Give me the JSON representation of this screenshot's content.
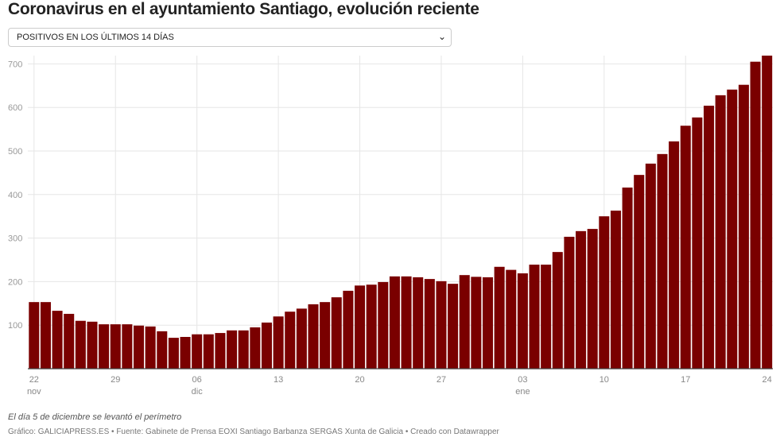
{
  "title": "Coronavirus en el ayuntamiento Santiago, evolución reciente",
  "selector": {
    "value": "POSITIVOS EN LOS ÚLTIMOS 14 DÍAS"
  },
  "note": "El día 5 de diciembre se levantó el perímetro",
  "source": "Gráfico: GALICIAPRESS.ES • Fuente: Gabinete de Prensa EOXI Santiago Barbanza SERGAS Xunta de Galicia • Creado con Datawrapper",
  "colors": {
    "bar": "#7a0000"
  },
  "chart_data": {
    "type": "bar",
    "title": "Coronavirus en el ayuntamiento Santiago, evolución reciente",
    "xlabel": "",
    "ylabel": "",
    "ylim": [
      0,
      720
    ],
    "yticks": [
      100,
      200,
      300,
      400,
      500,
      600,
      700
    ],
    "grid": true,
    "xticks": [
      {
        "index": 0,
        "label": "22",
        "sub": "nov"
      },
      {
        "index": 7,
        "label": "29",
        "sub": ""
      },
      {
        "index": 14,
        "label": "06",
        "sub": "dic"
      },
      {
        "index": 21,
        "label": "13",
        "sub": ""
      },
      {
        "index": 28,
        "label": "20",
        "sub": ""
      },
      {
        "index": 35,
        "label": "27",
        "sub": ""
      },
      {
        "index": 42,
        "label": "03",
        "sub": "ene"
      },
      {
        "index": 49,
        "label": "10",
        "sub": ""
      },
      {
        "index": 56,
        "label": "17",
        "sub": ""
      },
      {
        "index": 63,
        "label": "24",
        "sub": ""
      }
    ],
    "categories": [
      "22 nov",
      "23 nov",
      "24 nov",
      "25 nov",
      "26 nov",
      "27 nov",
      "28 nov",
      "29 nov",
      "30 nov",
      "1 dic",
      "2 dic",
      "3 dic",
      "4 dic",
      "5 dic",
      "6 dic",
      "7 dic",
      "8 dic",
      "9 dic",
      "10 dic",
      "11 dic",
      "12 dic",
      "13 dic",
      "14 dic",
      "15 dic",
      "16 dic",
      "17 dic",
      "18 dic",
      "19 dic",
      "20 dic",
      "21 dic",
      "22 dic",
      "23 dic",
      "24 dic",
      "25 dic",
      "26 dic",
      "27 dic",
      "28 dic",
      "29 dic",
      "30 dic",
      "31 dic",
      "1 ene",
      "2 ene",
      "3 ene",
      "4 ene",
      "5 ene",
      "6 ene",
      "7 ene",
      "8 ene",
      "9 ene",
      "10 ene",
      "11 ene",
      "12 ene",
      "13 ene",
      "14 ene",
      "15 ene",
      "16 ene",
      "17 ene",
      "18 ene",
      "19 ene",
      "20 ene",
      "21 ene",
      "22 ene",
      "23 ene",
      "24 ene"
    ],
    "values": [
      153,
      153,
      133,
      126,
      110,
      108,
      102,
      102,
      102,
      99,
      97,
      86,
      71,
      73,
      79,
      79,
      82,
      88,
      88,
      95,
      106,
      120,
      131,
      138,
      148,
      153,
      164,
      179,
      191,
      193,
      199,
      212,
      212,
      210,
      206,
      201,
      195,
      215,
      211,
      210,
      234,
      227,
      219,
      239,
      239,
      268,
      303,
      316,
      321,
      350,
      363,
      416,
      445,
      471,
      493,
      522,
      558,
      577,
      604,
      628,
      641,
      652,
      705,
      719
    ]
  }
}
